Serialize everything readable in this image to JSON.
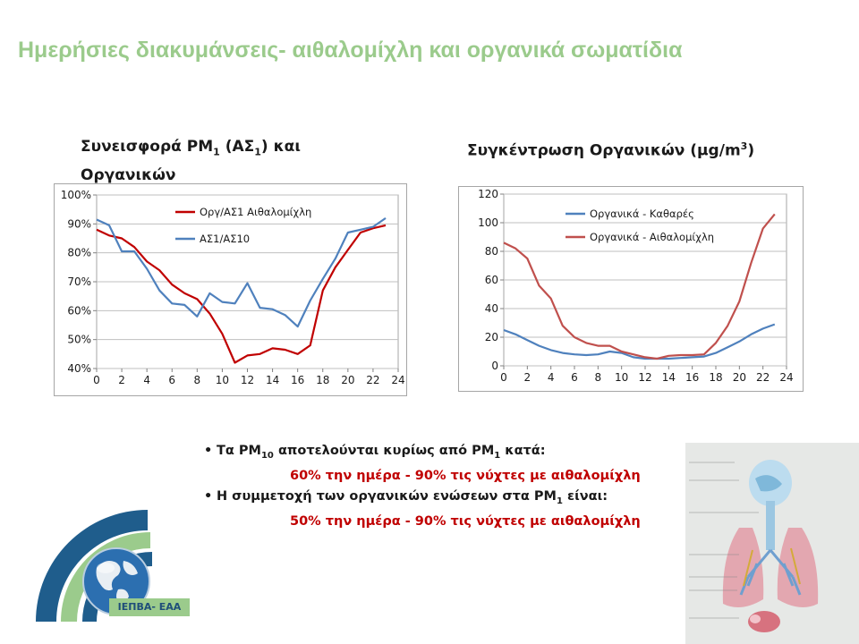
{
  "slide": {
    "title": "Ημερήσιες διακυμάνσεις- αιθαλομίχλη και οργανικά σωματίδια",
    "left_heading": {
      "line1_pre": "Συνεισφορά PM",
      "line1_sub": "1",
      "line1_mid": " (ΑΣ",
      "line1_sub2": "1",
      "line1_post": ") και",
      "line2": "Οργανικών"
    },
    "right_heading": {
      "pre": "Συγκέντρωση Οργανικών (μg/m",
      "sup": "3",
      "post": ")"
    },
    "bullet1": {
      "pre": "Τα PM",
      "sub": "10",
      "mid": " αποτελούνται κυρίως από PM",
      "sub2": "1",
      "post": " κατά:"
    },
    "bullet1_red": "60% την ημέρα - 90% τις νύχτες με αιθαλομίχλη",
    "bullet2": {
      "pre": "Η συμμετοχή των οργανικών ενώσεων στα PM",
      "sub": "1",
      "post": " είναι:"
    },
    "bullet2_red": "50% την ημέρα - 90% τις νύχτες με αιθαλομίχλη",
    "logo_label": "ΙΕΠΒΑ- ΕΑΑ",
    "colors": {
      "title": "#9bcb8c",
      "red_text": "#c00000",
      "series_red": "#c00000",
      "series_blue": "#4f81bd",
      "series_darkred": "#c0504d"
    }
  },
  "chart_data": [
    {
      "type": "line",
      "title": "",
      "xlabel": "",
      "ylabel": "",
      "xlim": [
        0,
        24
      ],
      "ylim": [
        0.4,
        1.0
      ],
      "xticks": [
        0,
        2,
        4,
        6,
        8,
        10,
        12,
        14,
        16,
        18,
        20,
        22,
        24
      ],
      "yticks": [
        {
          "v": 0.4,
          "label": "40%"
        },
        {
          "v": 0.5,
          "label": "50%"
        },
        {
          "v": 0.6,
          "label": "60%"
        },
        {
          "v": 0.7,
          "label": "70%"
        },
        {
          "v": 0.8,
          "label": "80%"
        },
        {
          "v": 0.9,
          "label": "90%"
        },
        {
          "v": 1.0,
          "label": "100%"
        }
      ],
      "grid": true,
      "legend": "top-center",
      "x": [
        0,
        1,
        2,
        3,
        4,
        5,
        6,
        7,
        8,
        9,
        10,
        11,
        12,
        13,
        14,
        15,
        16,
        17,
        18,
        19,
        20,
        21,
        22,
        23
      ],
      "series": [
        {
          "name": "Οργ/ΑΣ1 Αιθαλομίχλη",
          "color": "#c00000",
          "values": [
            0.88,
            0.86,
            0.85,
            0.82,
            0.77,
            0.74,
            0.69,
            0.66,
            0.64,
            0.59,
            0.52,
            0.42,
            0.445,
            0.45,
            0.47,
            0.465,
            0.45,
            0.48,
            0.67,
            0.75,
            0.81,
            0.87,
            0.885,
            0.895
          ]
        },
        {
          "name": "ΑΣ1/ΑΣ10",
          "color": "#4f81bd",
          "values": [
            0.915,
            0.895,
            0.805,
            0.805,
            0.745,
            0.67,
            0.625,
            0.62,
            0.58,
            0.66,
            0.63,
            0.625,
            0.695,
            0.61,
            0.605,
            0.585,
            0.545,
            0.635,
            0.71,
            0.78,
            0.87,
            0.88,
            0.89,
            0.92
          ]
        }
      ]
    },
    {
      "type": "line",
      "title": "",
      "xlabel": "",
      "ylabel": "",
      "xlim": [
        0,
        24
      ],
      "ylim": [
        0,
        120
      ],
      "xticks": [
        0,
        2,
        4,
        6,
        8,
        10,
        12,
        14,
        16,
        18,
        20,
        22,
        24
      ],
      "yticks": [
        {
          "v": 0,
          "label": "0"
        },
        {
          "v": 20,
          "label": "20"
        },
        {
          "v": 40,
          "label": "40"
        },
        {
          "v": 60,
          "label": "60"
        },
        {
          "v": 80,
          "label": "80"
        },
        {
          "v": 100,
          "label": "100"
        },
        {
          "v": 120,
          "label": "120"
        }
      ],
      "grid": true,
      "legend": "top-center",
      "x": [
        0,
        1,
        2,
        3,
        4,
        5,
        6,
        7,
        8,
        9,
        10,
        11,
        12,
        13,
        14,
        15,
        16,
        17,
        18,
        19,
        20,
        21,
        22,
        23
      ],
      "series": [
        {
          "name": "Οργανικά - Καθαρές",
          "color": "#4f81bd",
          "values": [
            25,
            22,
            18,
            14,
            11,
            9,
            8,
            7.5,
            8,
            10,
            9,
            6,
            5,
            5,
            5,
            5.5,
            6,
            6.5,
            9,
            13,
            17,
            22,
            26,
            29
          ]
        },
        {
          "name": "Οργανικά - Αιθαλομίχλη",
          "color": "#c0504d",
          "values": [
            86,
            82,
            75,
            56,
            47,
            28,
            20,
            16,
            14,
            14,
            10,
            8,
            6,
            5,
            7,
            7.5,
            7.5,
            8,
            16,
            28,
            45,
            72,
            96,
            106
          ]
        }
      ]
    }
  ]
}
